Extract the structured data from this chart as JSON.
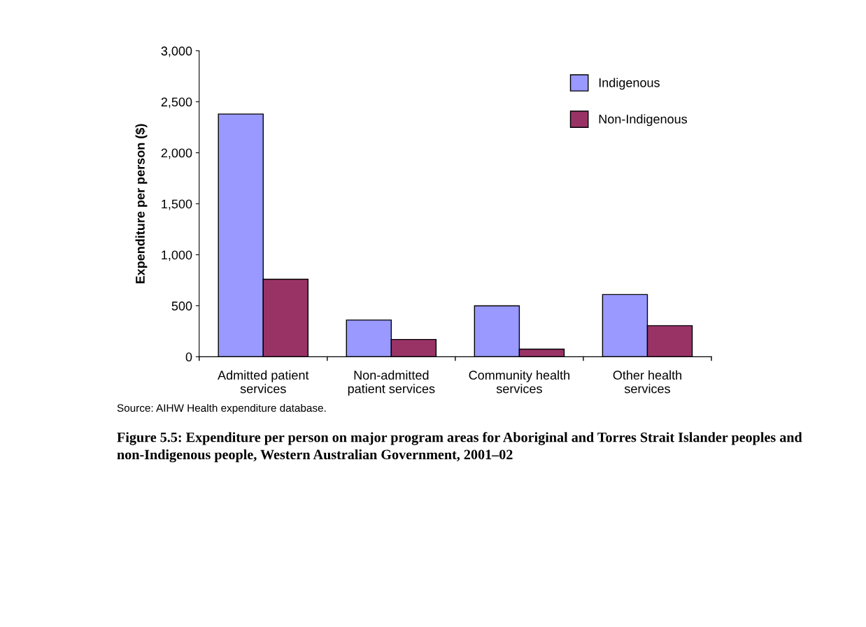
{
  "chart_data": {
    "type": "bar",
    "title": "Figure 5.5: Expenditure per person on major program areas for Aboriginal and Torres Strait Islander peoples and non-Indigenous people, Western Australian Government, 2001–02",
    "ylabel": "Expenditure per person ($)",
    "categories": [
      "Admitted patient\nservices",
      "Non-admitted\npatient services",
      "Community health\nservices",
      "Other health\nservices"
    ],
    "series": [
      {
        "name": "Indigenous",
        "color": "#9999ff",
        "values": [
          2380,
          360,
          500,
          610
        ]
      },
      {
        "name": "Non-Indigenous",
        "color": "#993366",
        "values": [
          760,
          170,
          75,
          305
        ]
      }
    ],
    "ylim": [
      0,
      3000
    ],
    "yticks": [
      {
        "value": 0,
        "label": "0"
      },
      {
        "value": 500,
        "label": "500"
      },
      {
        "value": 1000,
        "label": "1,000"
      },
      {
        "value": 1500,
        "label": "1,500"
      },
      {
        "value": 2000,
        "label": "2,000"
      },
      {
        "value": 2500,
        "label": "2,500"
      },
      {
        "value": 3000,
        "label": "3,000"
      }
    ],
    "grid": false,
    "legend": "top right",
    "annotations": [
      "Source: AIHW Health expenditure database."
    ]
  }
}
